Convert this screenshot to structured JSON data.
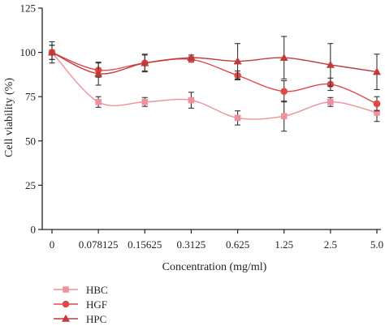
{
  "chart_data": {
    "type": "line",
    "title": "",
    "xlabel": "Concentration (mg/ml)",
    "ylabel": "Cell viability (%)",
    "categories": [
      "0",
      "0.078125",
      "0.15625",
      "0.3125",
      "0.625",
      "1.25",
      "2.5",
      "5.0"
    ],
    "ylim": [
      0,
      125
    ],
    "yticks": [
      0,
      25,
      50,
      75,
      100,
      125
    ],
    "grid": false,
    "legend_position": "bottom-left",
    "series": [
      {
        "name": "HBC",
        "marker": "square",
        "color": "#f0909a",
        "values": [
          100,
          72,
          72,
          73,
          63,
          64,
          72,
          66
        ],
        "errors": [
          4,
          3,
          2.5,
          4.5,
          4,
          8.5,
          2.5,
          5
        ]
      },
      {
        "name": "HGF",
        "marker": "circle",
        "color": "#e04848",
        "values": [
          100,
          90,
          94,
          96,
          87,
          78,
          82,
          71
        ],
        "errors": [
          4,
          4,
          4.5,
          1.5,
          2.5,
          6,
          3.5,
          4
        ]
      },
      {
        "name": "HPC",
        "marker": "triangle",
        "color": "#c03a3a",
        "values": [
          100,
          88,
          94,
          97,
          95,
          97,
          93,
          89
        ],
        "errors": [
          6,
          6.5,
          5,
          1.5,
          10,
          12,
          12,
          10
        ]
      }
    ]
  }
}
